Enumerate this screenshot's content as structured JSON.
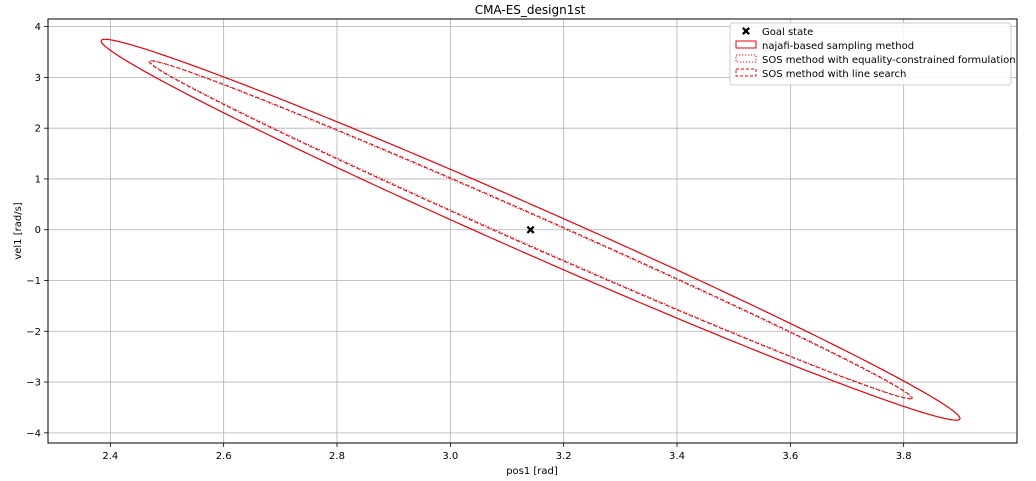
{
  "chart_data": {
    "type": "scatter",
    "title": "CMA-ES_design1st",
    "xlabel": "pos1 [rad]",
    "ylabel": "vel1 [rad/s]",
    "xlim": [
      2.29,
      4.0
    ],
    "ylim": [
      -4.2,
      4.15
    ],
    "xticks": [
      2.4,
      2.6,
      2.8,
      3.0,
      3.2,
      3.4,
      3.6,
      3.8
    ],
    "xtick_labels": [
      "2.4",
      "2.6",
      "2.8",
      "3.0",
      "3.2",
      "3.4",
      "3.6",
      "3.8"
    ],
    "yticks": [
      -4,
      -3,
      -2,
      -1,
      0,
      1,
      2,
      3,
      4
    ],
    "ytick_labels": [
      "−4",
      "−3",
      "−2",
      "−1",
      "0",
      "1",
      "2",
      "3",
      "4"
    ],
    "grid": true,
    "legend_position": "top-right",
    "goal_state": {
      "name": "Goal state",
      "x": 3.1416,
      "y": 0.0,
      "marker": "X",
      "color": "#000000"
    },
    "ellipses": [
      {
        "name": "najafi-based sampling method",
        "style": "solid",
        "color": "#e8000b",
        "center": [
          3.1416,
          0.0
        ],
        "vertex": [
          3.893,
          -3.75
        ],
        "semi_minor": 0.1,
        "line_width": 1.2
      },
      {
        "name": "SOS method with equality-constrained formulation",
        "style": "dotted",
        "color": "#e8000b",
        "center": [
          3.1416,
          0.0
        ],
        "vertex": [
          3.81,
          -3.32
        ],
        "semi_minor": 0.062,
        "line_width": 1.0
      },
      {
        "name": "SOS method with line search",
        "style": "dashed",
        "color": "#e8000b",
        "center": [
          3.1416,
          0.0
        ],
        "vertex": [
          3.812,
          -3.33
        ],
        "semi_minor": 0.066,
        "line_width": 1.0
      }
    ]
  }
}
